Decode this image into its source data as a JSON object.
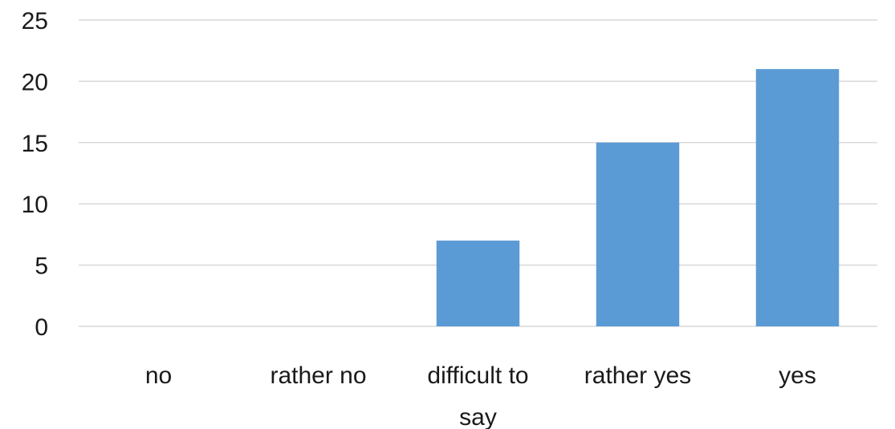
{
  "chart_data": {
    "type": "bar",
    "title": "",
    "xlabel": "",
    "ylabel": "",
    "categories": [
      [
        "no"
      ],
      [
        "rather no"
      ],
      [
        "difficult to",
        "say"
      ],
      [
        "rather yes"
      ],
      [
        "yes"
      ]
    ],
    "values": [
      0,
      0,
      7,
      15,
      21
    ],
    "ylim": [
      0,
      25
    ],
    "yticks": [
      "0",
      "5",
      "10",
      "15",
      "20",
      "25"
    ],
    "grid": true,
    "legend": "none",
    "bar_color": "#5B9BD5",
    "grid_color": "#D9D9D9"
  }
}
